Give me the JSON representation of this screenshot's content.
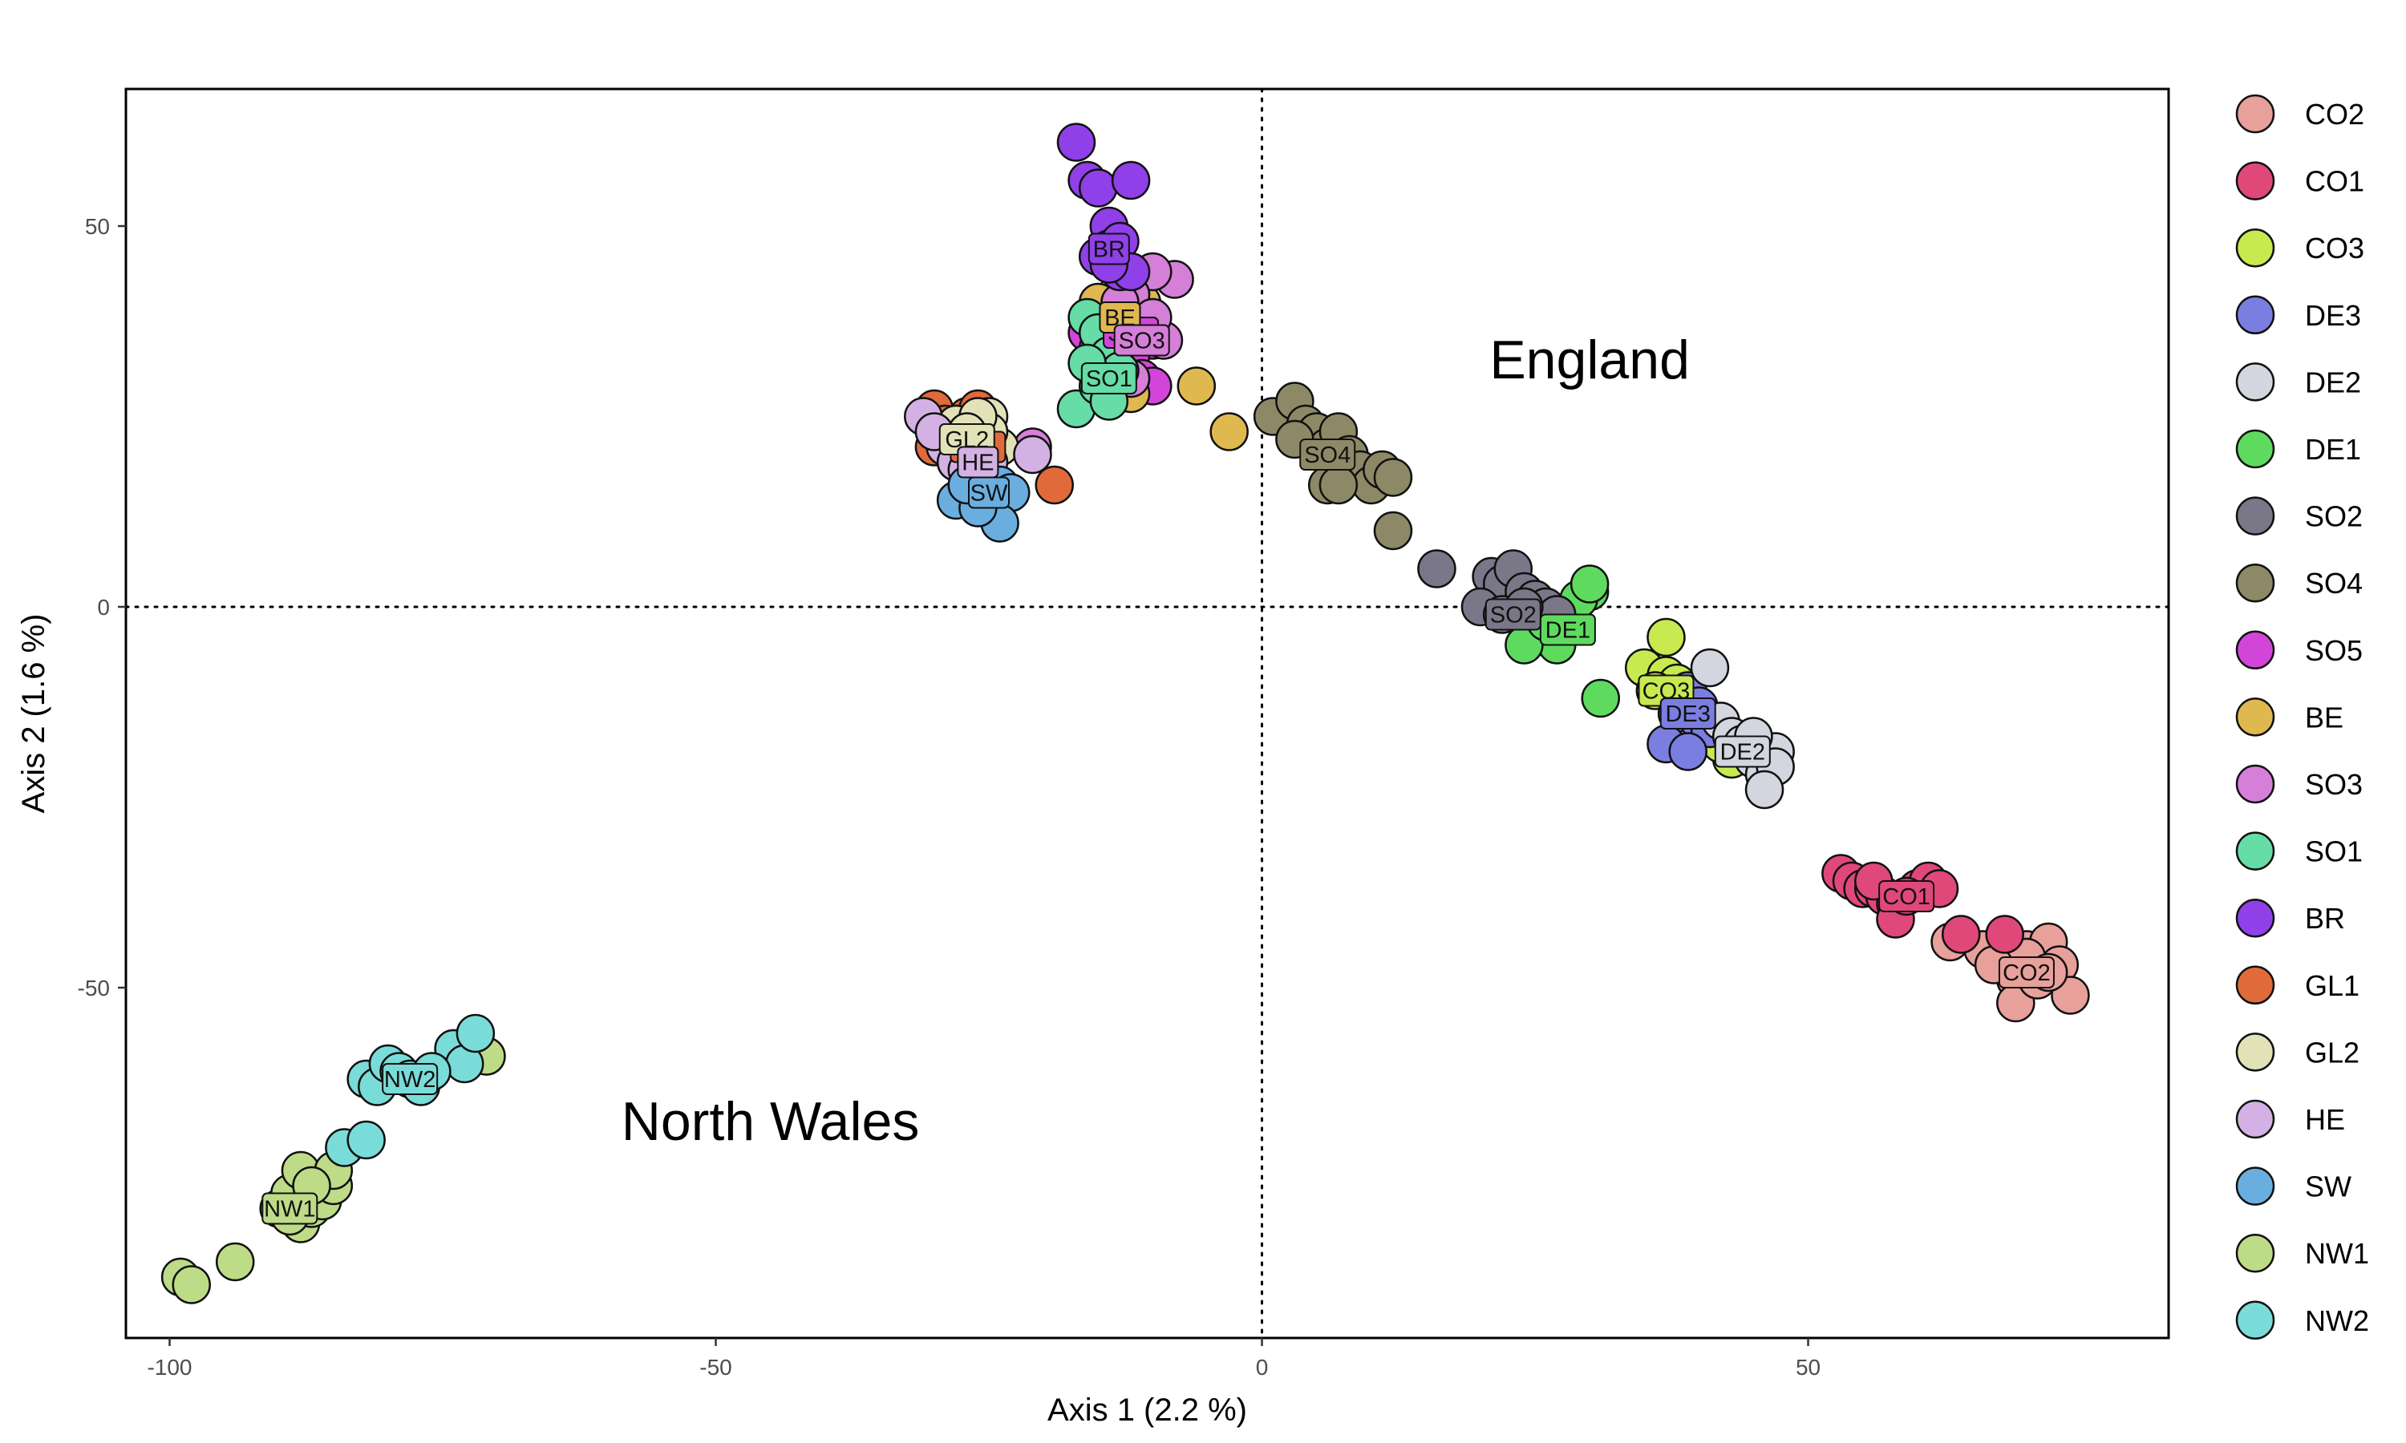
{
  "chart_data": {
    "type": "scatter",
    "xlabel": "Axis 1 (2.2 %)",
    "ylabel": "Axis 2 (1.6 %)",
    "xlim": [
      -104,
      83
    ],
    "ylim": [
      -96,
      68
    ],
    "xticks": [
      -100,
      -50,
      0,
      50
    ],
    "yticks": [
      50,
      0,
      -50
    ],
    "reference_lines": {
      "x": 0,
      "y": 0,
      "style": "dotted"
    },
    "annotations": [
      {
        "text": "England",
        "x": 30,
        "y": 30
      },
      {
        "text": "North Wales",
        "x": -45,
        "y": -70
      }
    ],
    "legend_position": "right",
    "series": [
      {
        "name": "CO2",
        "color": "#E8A09A",
        "label_at": [
          70,
          -48
        ],
        "points": [
          [
            63,
            -44
          ],
          [
            66,
            -45
          ],
          [
            69,
            -49
          ],
          [
            70,
            -45
          ],
          [
            72,
            -44
          ],
          [
            73,
            -47
          ],
          [
            74,
            -51
          ],
          [
            69,
            -52
          ],
          [
            70,
            -46
          ],
          [
            67,
            -47
          ],
          [
            71,
            -49
          ],
          [
            72,
            -48
          ]
        ]
      },
      {
        "name": "CO1",
        "color": "#E0487A",
        "label_at": [
          59,
          -38
        ],
        "points": [
          [
            53,
            -35
          ],
          [
            54,
            -36
          ],
          [
            55,
            -37
          ],
          [
            56,
            -37
          ],
          [
            57,
            -38
          ],
          [
            58,
            -39
          ],
          [
            58,
            -41
          ],
          [
            60,
            -37
          ],
          [
            61,
            -36
          ],
          [
            62,
            -37
          ],
          [
            64,
            -43
          ],
          [
            68,
            -43
          ],
          [
            56,
            -36
          ],
          [
            59,
            -38
          ]
        ]
      },
      {
        "name": "CO3",
        "color": "#C6EA50",
        "label_at": [
          37,
          -11
        ],
        "points": [
          [
            35,
            -8
          ],
          [
            37,
            -9
          ],
          [
            38,
            -10
          ],
          [
            37,
            -4
          ],
          [
            43,
            -20
          ],
          [
            42,
            -18
          ],
          [
            36,
            -11
          ],
          [
            38,
            -12
          ]
        ]
      },
      {
        "name": "DE3",
        "color": "#7A7EE0",
        "label_at": [
          39,
          -14
        ],
        "points": [
          [
            38,
            -14
          ],
          [
            39,
            -11
          ],
          [
            40,
            -15
          ],
          [
            41,
            -16
          ],
          [
            37,
            -18
          ],
          [
            39,
            -19
          ],
          [
            40,
            -13
          ]
        ]
      },
      {
        "name": "DE2",
        "color": "#D3D6DE",
        "label_at": [
          44,
          -19
        ],
        "points": [
          [
            41,
            -8
          ],
          [
            42,
            -15
          ],
          [
            43,
            -17
          ],
          [
            44,
            -18
          ],
          [
            45,
            -20
          ],
          [
            46,
            -22
          ],
          [
            47,
            -19
          ],
          [
            47,
            -21
          ],
          [
            46,
            -24
          ],
          [
            45,
            -17
          ]
        ]
      },
      {
        "name": "DE1",
        "color": "#5EDB5E",
        "label_at": [
          28,
          -3
        ],
        "points": [
          [
            25,
            -3
          ],
          [
            26,
            -4
          ],
          [
            27,
            -5
          ],
          [
            24,
            -5
          ],
          [
            28,
            -2
          ],
          [
            30,
            2
          ],
          [
            31,
            -12
          ],
          [
            26,
            -2
          ],
          [
            29,
            1
          ],
          [
            30,
            3
          ]
        ]
      },
      {
        "name": "SO2",
        "color": "#7A7888",
        "label_at": [
          23,
          -1
        ],
        "points": [
          [
            16,
            5
          ],
          [
            21,
            4
          ],
          [
            22,
            3
          ],
          [
            23,
            5
          ],
          [
            24,
            2
          ],
          [
            25,
            1
          ],
          [
            26,
            0
          ],
          [
            27,
            -1
          ],
          [
            20,
            0
          ],
          [
            22,
            -1
          ],
          [
            24,
            0
          ]
        ]
      },
      {
        "name": "SO4",
        "color": "#8D8866",
        "label_at": [
          6,
          20
        ],
        "points": [
          [
            1,
            25
          ],
          [
            3,
            27
          ],
          [
            4,
            24
          ],
          [
            5,
            23
          ],
          [
            6,
            21
          ],
          [
            7,
            23
          ],
          [
            8,
            20
          ],
          [
            9,
            18
          ],
          [
            10,
            16
          ],
          [
            11,
            18
          ],
          [
            12,
            17
          ],
          [
            12,
            10
          ],
          [
            6,
            16
          ],
          [
            7,
            16
          ],
          [
            3,
            22
          ]
        ]
      },
      {
        "name": "SO5",
        "color": "#D345D8",
        "label_at": [
          -12,
          36
        ],
        "points": [
          [
            -16,
            36
          ],
          [
            -15,
            34
          ],
          [
            -14,
            37
          ],
          [
            -13,
            38
          ],
          [
            -12,
            39
          ],
          [
            -11,
            36
          ],
          [
            -10,
            35
          ],
          [
            -14,
            32
          ],
          [
            -12,
            33
          ],
          [
            -13,
            35
          ],
          [
            -11,
            30
          ],
          [
            -10,
            29
          ],
          [
            -15,
            33
          ],
          [
            -12,
            37
          ]
        ]
      },
      {
        "name": "BE",
        "color": "#E0B850",
        "label_at": [
          -13,
          38
        ],
        "points": [
          [
            -6,
            29
          ],
          [
            -3,
            23
          ],
          [
            -14,
            38
          ],
          [
            -13,
            42
          ],
          [
            -12,
            36
          ],
          [
            -11,
            38
          ],
          [
            -15,
            40
          ],
          [
            -12,
            28
          ],
          [
            -13,
            31
          ],
          [
            -14,
            28
          ],
          [
            -11,
            40
          ],
          [
            -13,
            39
          ]
        ]
      },
      {
        "name": "SO3",
        "color": "#D57FD8",
        "label_at": [
          -11,
          35
        ],
        "points": [
          [
            -8,
            43
          ],
          [
            -10,
            44
          ],
          [
            -11,
            36
          ],
          [
            -9,
            35
          ],
          [
            -12,
            41
          ],
          [
            -13,
            40
          ],
          [
            -10,
            38
          ],
          [
            -21,
            21
          ],
          [
            -12,
            30
          ]
        ]
      },
      {
        "name": "SO1",
        "color": "#66DCA6",
        "label_at": [
          -14,
          30
        ],
        "points": [
          [
            -17,
            26
          ],
          [
            -16,
            38
          ],
          [
            -15,
            36
          ],
          [
            -14,
            33
          ],
          [
            -13,
            31
          ],
          [
            -15,
            29
          ],
          [
            -14,
            27
          ],
          [
            -16,
            32
          ]
        ]
      },
      {
        "name": "BR",
        "color": "#9040E8",
        "label_at": [
          -14,
          47
        ],
        "points": [
          [
            -17,
            61
          ],
          [
            -16,
            56
          ],
          [
            -15,
            55
          ],
          [
            -12,
            56
          ],
          [
            -14,
            50
          ],
          [
            -14,
            47
          ],
          [
            -13,
            48
          ],
          [
            -15,
            46
          ],
          [
            -13,
            44
          ],
          [
            -12,
            44
          ],
          [
            -14,
            45
          ]
        ]
      },
      {
        "name": "GL1",
        "color": "#E06A3A",
        "label_at": [
          -26,
          21
        ],
        "points": [
          [
            -30,
            26
          ],
          [
            -29,
            24
          ],
          [
            -30,
            21
          ],
          [
            -27,
            25
          ],
          [
            -26,
            26
          ],
          [
            -28,
            22
          ],
          [
            -25,
            20
          ],
          [
            -19,
            16
          ],
          [
            -27,
            19
          ],
          [
            -29,
            23
          ]
        ]
      },
      {
        "name": "GL2",
        "color": "#E2E2B8",
        "label_at": [
          -27,
          22
        ],
        "points": [
          [
            -28,
            24
          ],
          [
            -27,
            20
          ],
          [
            -26,
            22
          ],
          [
            -25,
            25
          ],
          [
            -24,
            21
          ],
          [
            -25,
            23
          ],
          [
            -28,
            19
          ],
          [
            -26,
            25
          ],
          [
            -27,
            23
          ]
        ]
      },
      {
        "name": "HE",
        "color": "#D4B1E4",
        "label_at": [
          -26,
          19
        ],
        "points": [
          [
            -31,
            25
          ],
          [
            -29,
            21
          ],
          [
            -28,
            19
          ],
          [
            -27,
            18
          ],
          [
            -25,
            19
          ],
          [
            -21,
            20
          ],
          [
            -30,
            23
          ],
          [
            -26,
            17
          ]
        ]
      },
      {
        "name": "SW",
        "color": "#6AAEE0",
        "label_at": [
          -25,
          15
        ],
        "points": [
          [
            -28,
            14
          ],
          [
            -26,
            15
          ],
          [
            -25,
            14
          ],
          [
            -24,
            16
          ],
          [
            -23,
            15
          ],
          [
            -24,
            11
          ],
          [
            -26,
            13
          ],
          [
            -27,
            16
          ]
        ]
      },
      {
        "name": "NW1",
        "color": "#BEDB88",
        "label_at": [
          -89,
          -79
        ],
        "points": [
          [
            -99,
            -88
          ],
          [
            -98,
            -89
          ],
          [
            -94,
            -86
          ],
          [
            -90,
            -79
          ],
          [
            -89,
            -77
          ],
          [
            -88,
            -81
          ],
          [
            -87,
            -79
          ],
          [
            -86,
            -78
          ],
          [
            -85,
            -76
          ],
          [
            -88,
            -74
          ],
          [
            -85,
            -74
          ],
          [
            -71,
            -59
          ],
          [
            -89,
            -80
          ],
          [
            -87,
            -76
          ]
        ]
      },
      {
        "name": "NW2",
        "color": "#7ADCD8",
        "label_at": [
          -78,
          -62
        ],
        "points": [
          [
            -82,
            -62
          ],
          [
            -81,
            -63
          ],
          [
            -80,
            -60
          ],
          [
            -79,
            -61
          ],
          [
            -78,
            -62
          ],
          [
            -77,
            -63
          ],
          [
            -74,
            -58
          ],
          [
            -73,
            -60
          ],
          [
            -72,
            -56
          ],
          [
            -84,
            -71
          ],
          [
            -82,
            -70
          ],
          [
            -76,
            -61
          ]
        ]
      }
    ]
  }
}
